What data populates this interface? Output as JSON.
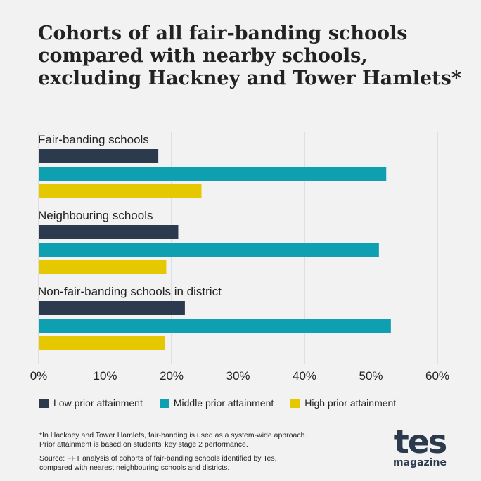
{
  "title_lines": [
    "Cohorts of all fair-banding schools",
    "compared with nearby schools,",
    "excluding Hackney and Tower Hamlets*"
  ],
  "colors": {
    "background": "#f2f2f2",
    "grid": "#cccccc",
    "text": "#222222"
  },
  "chart_data": {
    "type": "bar",
    "orientation": "horizontal",
    "categories": [
      "Fair-banding schools",
      "Neighbouring schools",
      "Non-fair-banding schools in district"
    ],
    "series": [
      {
        "name": "Low prior attainment",
        "color": "#2b3a4d",
        "values": [
          18,
          21,
          22
        ]
      },
      {
        "name": "Middle prior attainment",
        "color": "#0e9fb0",
        "values": [
          52.3,
          51.2,
          53
        ]
      },
      {
        "name": "High prior attainment",
        "color": "#e6c800",
        "values": [
          24.5,
          19.2,
          19
        ]
      }
    ],
    "xlim": [
      0,
      60
    ],
    "xticks": [
      0,
      10,
      20,
      30,
      40,
      50,
      60
    ],
    "tick_format": "%",
    "grid": true,
    "legend_position": "bottom"
  },
  "footnotes": [
    "*In Hackney and Tower Hamlets, fair-banding is used as a system-wide approach.",
    "Prior attainment is based on students' key stage 2 performance."
  ],
  "source_lines": [
    "Source: FFT analysis of cohorts of fair-banding schools identified by Tes,",
    "compared with nearest neighbouring schools and districts."
  ],
  "logo": {
    "word": "tes",
    "sub": "magazine",
    "color": "#2b3a4d"
  }
}
